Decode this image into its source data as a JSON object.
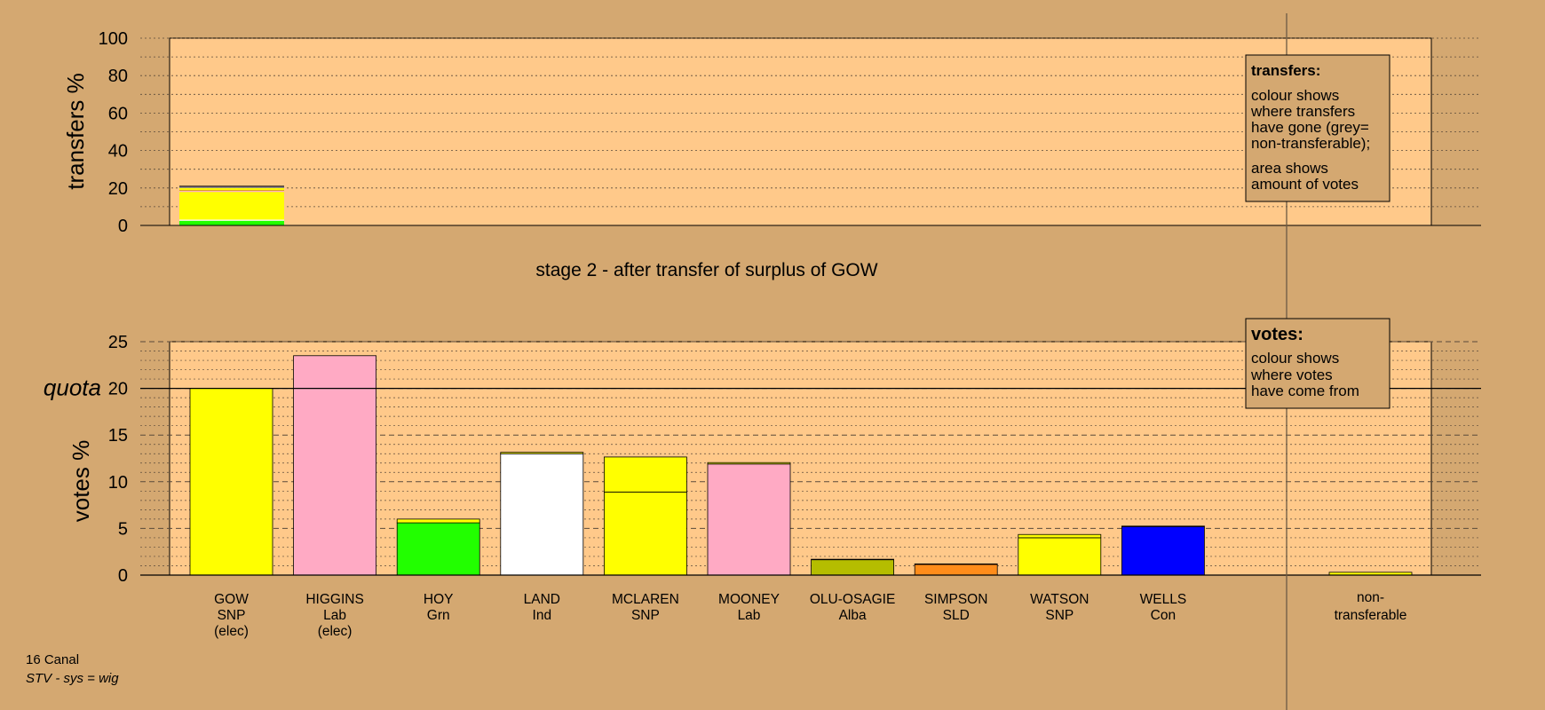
{
  "stage_title": "stage 2 - after transfer of surplus of GOW",
  "footer": {
    "ward": "16 Canal",
    "system": "STV - sys = wig"
  },
  "legend_transfers": {
    "title": "transfers:",
    "lines1": [
      "colour shows",
      "where transfers",
      "have gone (grey=",
      "non-transferable);"
    ],
    "lines2": [
      "area shows",
      "amount of votes"
    ]
  },
  "legend_votes": {
    "title": "votes:",
    "lines": [
      "colour shows",
      "where votes",
      "have come from"
    ]
  },
  "colors": {
    "background": "#d4a871",
    "panel": "#ffc98a",
    "SNP": "#ffff00",
    "Lab": "#ffaac4",
    "Grn": "#22ff00",
    "Ind": "#ffffff",
    "Alba": "#b5bd00",
    "SLD": "#ff8c1a",
    "Con": "#0000ff",
    "non-transferable": "#999999"
  },
  "chart_data": [
    {
      "type": "bar",
      "title": "",
      "ylabel": "transfers %",
      "ylim": [
        0,
        100
      ],
      "yticks": [
        0,
        20,
        40,
        60,
        80,
        100
      ],
      "bars": [
        {
          "name": "GOW",
          "segments": [
            {
              "to": "HOY",
              "color": "#22ff00",
              "value": 2.5
            },
            {
              "to": "LAND",
              "color": "#ffffff",
              "value": 0.6
            },
            {
              "to": "MCLAREN",
              "color": "#ffff00",
              "value": 14.8
            },
            {
              "to": "MOONEY",
              "color": "#ffaac4",
              "value": 0.6
            },
            {
              "to": "OLU-OSAGIE",
              "color": "#b5bd00",
              "value": 0.3
            },
            {
              "to": "SIMPSON",
              "color": "#ff8c1a",
              "value": 0.2
            },
            {
              "to": "WATSON",
              "color": "#ffff00",
              "value": 1.2
            },
            {
              "to": "WELLS",
              "color": "#0000ff",
              "value": 0.3
            },
            {
              "to": "non-transferable",
              "color": "#999999",
              "value": 0.4
            }
          ]
        }
      ]
    },
    {
      "type": "bar",
      "title": "",
      "ylabel": "votes %",
      "ylim": [
        0,
        25
      ],
      "yticks": [
        0,
        5,
        10,
        15,
        20,
        25
      ],
      "quota": 20,
      "quota_label": "quota",
      "candidates": [
        {
          "name": "GOW",
          "party": "SNP",
          "status": "(elec)",
          "segments": [
            {
              "color": "#ffff00",
              "value": 20.0
            }
          ]
        },
        {
          "name": "HIGGINS",
          "party": "Lab",
          "status": "(elec)",
          "segments": [
            {
              "color": "#ffaac4",
              "value": 23.5
            }
          ]
        },
        {
          "name": "HOY",
          "party": "Grn",
          "status": "",
          "segments": [
            {
              "color": "#22ff00",
              "value": 5.6
            },
            {
              "color": "#ffff00",
              "value": 0.4
            }
          ]
        },
        {
          "name": "LAND",
          "party": "Ind",
          "status": "",
          "segments": [
            {
              "color": "#ffffff",
              "value": 13.0
            },
            {
              "color": "#ffff00",
              "value": 0.15
            }
          ]
        },
        {
          "name": "MCLAREN",
          "party": "SNP",
          "status": "",
          "segments": [
            {
              "color": "#ffff00",
              "value": 8.9
            },
            {
              "color": "#ffff00",
              "value": 3.75
            }
          ]
        },
        {
          "name": "MOONEY",
          "party": "Lab",
          "status": "",
          "segments": [
            {
              "color": "#ffaac4",
              "value": 11.9
            },
            {
              "color": "#ffff00",
              "value": 0.15
            }
          ]
        },
        {
          "name": "OLU-OSAGIE",
          "party": "Alba",
          "status": "",
          "segments": [
            {
              "color": "#b5bd00",
              "value": 1.65
            },
            {
              "color": "#ffff00",
              "value": 0.05
            }
          ]
        },
        {
          "name": "SIMPSON",
          "party": "SLD",
          "status": "",
          "segments": [
            {
              "color": "#ff8c1a",
              "value": 1.15
            },
            {
              "color": "#ffff00",
              "value": 0.05
            }
          ]
        },
        {
          "name": "WATSON",
          "party": "SNP",
          "status": "",
          "segments": [
            {
              "color": "#ffff00",
              "value": 4.0
            },
            {
              "color": "#ffff00",
              "value": 0.35
            }
          ]
        },
        {
          "name": "WELLS",
          "party": "Con",
          "status": "",
          "segments": [
            {
              "color": "#0000ff",
              "value": 5.2
            },
            {
              "color": "#ffff00",
              "value": 0.05
            }
          ]
        }
      ],
      "nontransferable": {
        "label1": "non-",
        "label2": "transferable",
        "segments": [
          {
            "color": "#ffff00",
            "value": 0.3
          }
        ]
      }
    }
  ]
}
